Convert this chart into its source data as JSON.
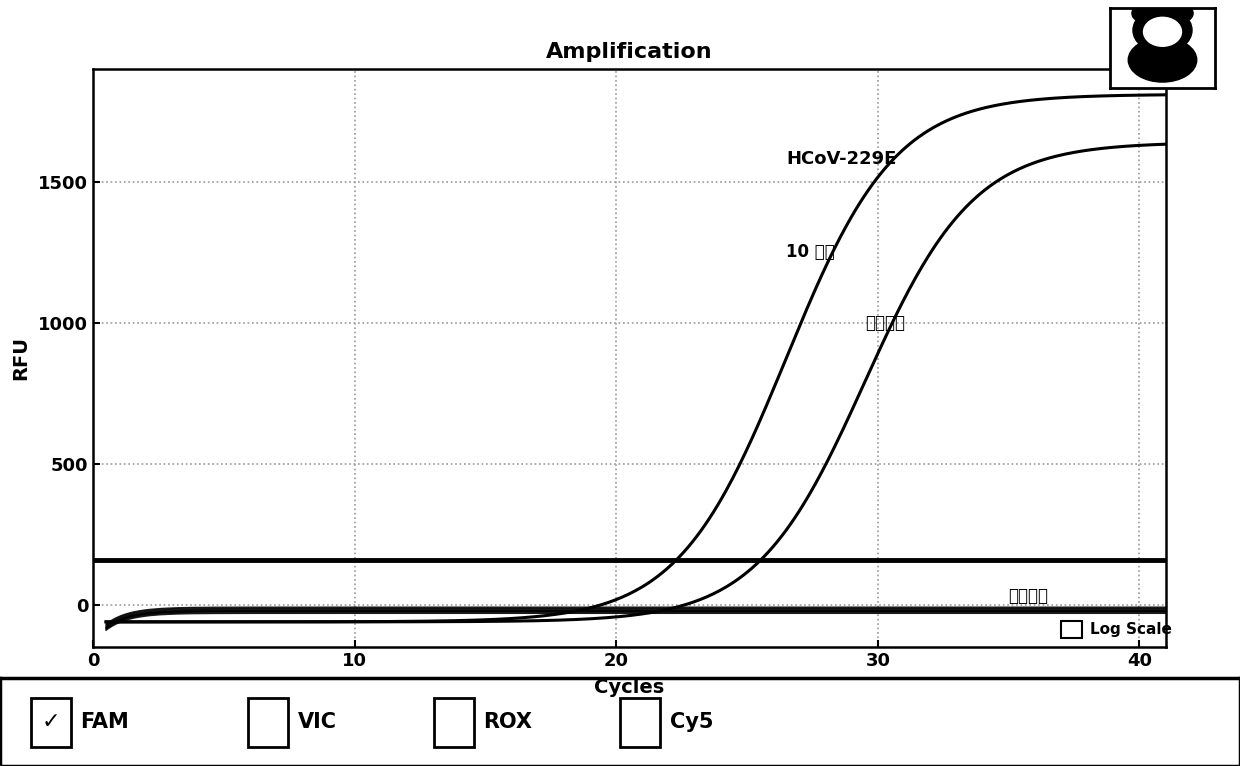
{
  "title": "Amplification",
  "xlabel": "Cycles",
  "ylabel": "RFU",
  "xlim": [
    0,
    41
  ],
  "ylim": [
    -150,
    1900
  ],
  "yticks": [
    0,
    500,
    1000,
    1500
  ],
  "xticks": [
    0,
    10,
    20,
    30,
    40
  ],
  "threshold_y": 160,
  "annotation_hcov": "HCoV-229E",
  "annotation_copies": "10 拷贝",
  "annotation_pos_ctrl": "阳性质控",
  "annotation_neg_ctrl": "阴性质控",
  "line_color": "#000000",
  "threshold_color": "#000000",
  "bg_color": "#ffffff",
  "plot_bg_color": "#ffffff",
  "grid_color": "#999999",
  "checkbox_labels": [
    "FAM",
    "VIC",
    "ROX",
    "Cy5"
  ],
  "checkbox_checked": [
    true,
    false,
    false,
    false
  ],
  "curve1_L": 1870,
  "curve1_x0": 26.5,
  "curve1_k": 0.48,
  "curve1_b": -60,
  "curve2_L": 1700,
  "curve2_x0": 29.5,
  "curve2_k": 0.48,
  "curve2_b": -60
}
